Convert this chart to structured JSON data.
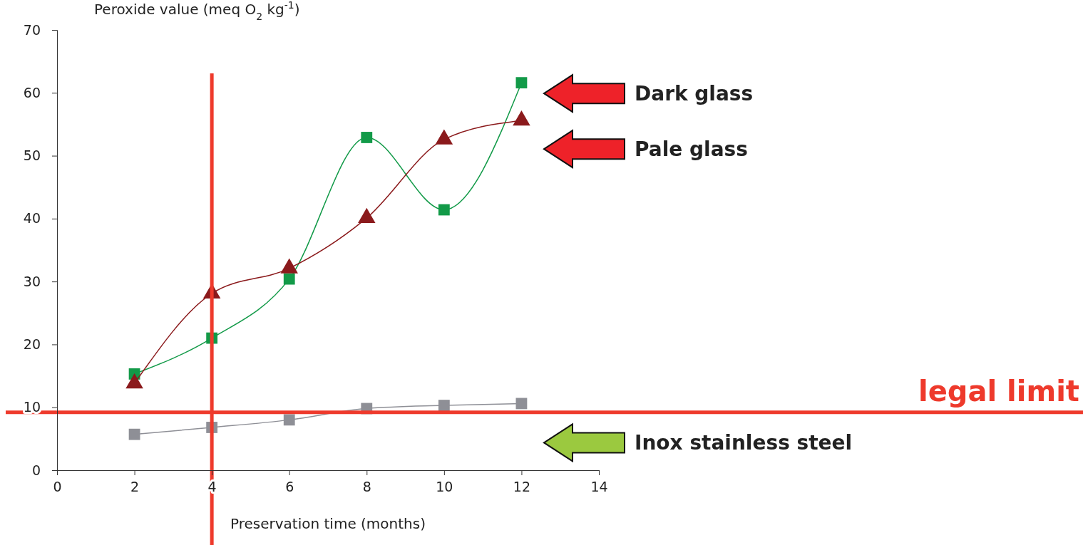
{
  "chart_data": {
    "type": "line",
    "xlabel": "Preservation time (months)",
    "ylabel": "Peroxide value (meq O$_{2}$ kg$^{-1}$)",
    "x": [
      2,
      4,
      6,
      8,
      10,
      12
    ],
    "series": [
      {
        "name": "Dark glass",
        "color": "#129a48",
        "marker": "square",
        "values": [
          15.3,
          21.0,
          30.4,
          52.9,
          41.4,
          61.6
        ]
      },
      {
        "name": "Pale glass",
        "color": "#8b1a1c",
        "marker": "triangle",
        "values": [
          13.8,
          28.1,
          32.1,
          40.1,
          52.6,
          55.6
        ]
      },
      {
        "name": "Inox stainless steel",
        "color": "#8e8f96",
        "marker": "square",
        "values": [
          5.7,
          6.8,
          8.0,
          9.8,
          10.3,
          10.6
        ]
      }
    ],
    "xlim": [
      0,
      14
    ],
    "xticks": [
      0,
      2,
      4,
      6,
      8,
      10,
      12,
      14
    ],
    "ylim": [
      0,
      70
    ],
    "yticks": [
      0,
      10,
      20,
      30,
      40,
      50,
      60,
      70
    ],
    "ref_lines": [
      {
        "axis": "y",
        "value": 9.2,
        "label": "legal limit",
        "color": "#ee3a2c"
      },
      {
        "axis": "x",
        "value": 4,
        "label": null,
        "color": "#ee3a2c"
      }
    ],
    "grid": false
  }
}
